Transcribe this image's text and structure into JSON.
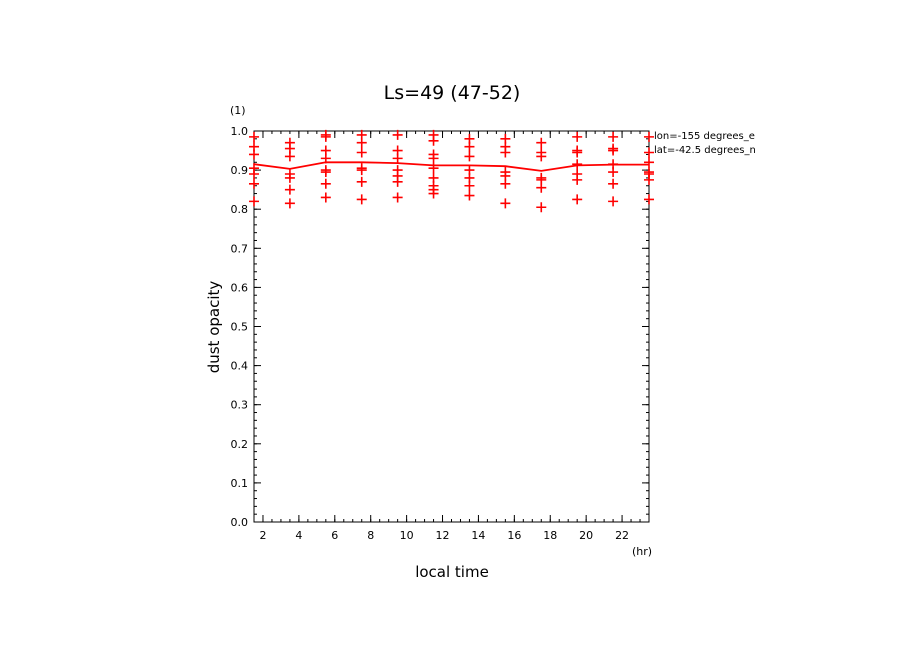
{
  "chart_data": {
    "type": "line",
    "title": "Ls=49 (47-52)",
    "xlabel": "local time",
    "ylabel": "dust opacity",
    "x_unit": "(hr)",
    "y_unit": "(1)",
    "xlim": [
      1.5,
      23.5
    ],
    "ylim": [
      0.0,
      1.0
    ],
    "x_ticks": [
      2,
      4,
      6,
      8,
      10,
      12,
      14,
      16,
      18,
      20,
      22
    ],
    "y_ticks": [
      0.0,
      0.1,
      0.2,
      0.3,
      0.4,
      0.5,
      0.6,
      0.7,
      0.8,
      0.9,
      1.0
    ],
    "y_tick_labels": [
      "0.0",
      "0.1",
      "0.2",
      "0.3",
      "0.4",
      "0.5",
      "0.6",
      "0.7",
      "0.8",
      "0.9",
      "1.0"
    ],
    "grid": false,
    "color": "#ff0000",
    "annotations": [
      "lon=-155 degrees_e",
      "lat=-42.5 degrees_n"
    ],
    "mean_series": {
      "x": [
        1.5,
        3.5,
        5.5,
        7.5,
        9.5,
        11.5,
        13.5,
        15.5,
        17.5,
        19.5,
        21.5,
        23.5
      ],
      "y": [
        0.915,
        0.903,
        0.92,
        0.92,
        0.918,
        0.912,
        0.912,
        0.91,
        0.898,
        0.912,
        0.914,
        0.914
      ]
    },
    "scatter_series": [
      {
        "x": 1.5,
        "y": [
          0.985,
          0.96,
          0.94,
          0.905,
          0.89,
          0.865,
          0.82
        ]
      },
      {
        "x": 3.5,
        "y": [
          0.97,
          0.955,
          0.935,
          0.89,
          0.88,
          0.85,
          0.815
        ]
      },
      {
        "x": 5.5,
        "y": [
          0.99,
          0.985,
          0.95,
          0.93,
          0.9,
          0.895,
          0.865,
          0.83
        ]
      },
      {
        "x": 7.5,
        "y": [
          0.99,
          0.97,
          0.945,
          0.905,
          0.9,
          0.87,
          0.825
        ]
      },
      {
        "x": 9.5,
        "y": [
          0.99,
          0.95,
          0.93,
          0.9,
          0.885,
          0.87,
          0.83
        ]
      },
      {
        "x": 11.5,
        "y": [
          0.99,
          0.975,
          0.94,
          0.93,
          0.905,
          0.88,
          0.86,
          0.85,
          0.84
        ]
      },
      {
        "x": 13.5,
        "y": [
          0.98,
          0.96,
          0.935,
          0.9,
          0.88,
          0.86,
          0.835
        ]
      },
      {
        "x": 15.5,
        "y": [
          0.98,
          0.96,
          0.945,
          0.895,
          0.885,
          0.865,
          0.815
        ]
      },
      {
        "x": 17.5,
        "y": [
          0.97,
          0.945,
          0.935,
          0.88,
          0.875,
          0.855,
          0.805
        ]
      },
      {
        "x": 19.5,
        "y": [
          0.985,
          0.95,
          0.945,
          0.915,
          0.89,
          0.875,
          0.825
        ]
      },
      {
        "x": 21.5,
        "y": [
          0.985,
          0.955,
          0.95,
          0.915,
          0.895,
          0.865,
          0.82
        ]
      },
      {
        "x": 23.5,
        "y": [
          0.985,
          0.945,
          0.92,
          0.895,
          0.89,
          0.875,
          0.825
        ]
      }
    ]
  }
}
